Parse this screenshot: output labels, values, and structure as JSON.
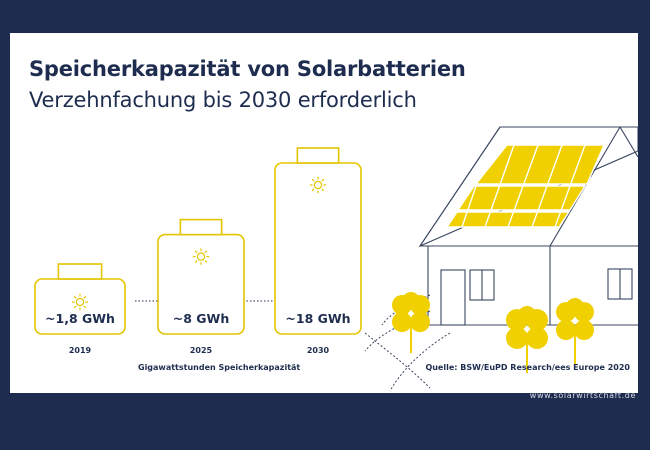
{
  "header": {
    "title": "Speicherkapazität von Solarbatterien",
    "subtitle": "Verzehnfachung bis 2030 erforderlich"
  },
  "chart_data": {
    "type": "bar",
    "categories": [
      "2019",
      "2025",
      "2030"
    ],
    "values": [
      1.8,
      8,
      18
    ],
    "value_labels": [
      "~1,8 GWh",
      "~8 GWh",
      "~18 GWh"
    ],
    "xlabel": "Gigawattstunden Speicherkapazität",
    "ylabel": "",
    "source": "Quelle: BSW/EuPD Research/ees Europe 2020"
  },
  "footer": {
    "website": "www.solarwirtschaft.de"
  },
  "colors": {
    "navy": "#1e2d4f",
    "accent_yellow": "#f0d000",
    "outline_yellow": "#e3c500",
    "house_line": "#3a4660"
  },
  "icons": [
    "sun-icon",
    "arrow-right-icon",
    "house-illustration",
    "tree-icon",
    "solar-panel-icon"
  ]
}
